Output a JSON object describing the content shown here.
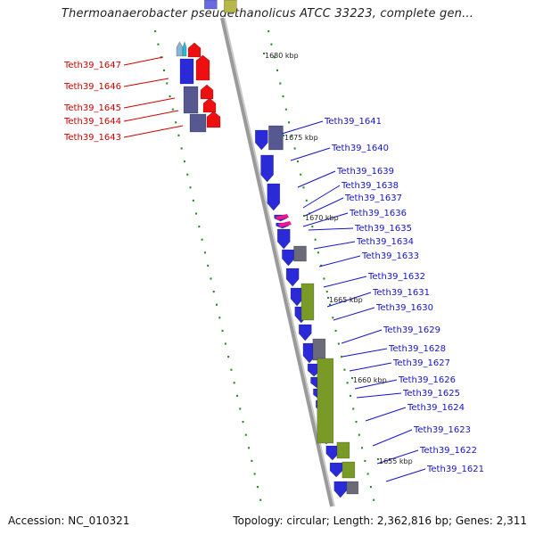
{
  "title": "Thermoanaerobacter pseudethanolicus ATCC 33223, complete gen...",
  "footer": {
    "accession": "Accession: NC_010321",
    "summary": "Topology: circular; Length: 2,362,816 bp; Genes: 2,311"
  },
  "colors": {
    "forward_label": "#1414c8",
    "reverse_label": "#d20000",
    "tick": "#2a8a2a",
    "backbone": "#8a8a8a"
  },
  "scale_labels": [
    "1680 kbp",
    "1675 kbp",
    "1670 kbp",
    "1665 kbp",
    "1660 kbp",
    "1655 kbp"
  ],
  "reverse_genes": [
    "Teth39_1647",
    "Teth39_1646",
    "Teth39_1645",
    "Teth39_1644",
    "Teth39_1643"
  ],
  "forward_genes": [
    "Teth39_1641",
    "Teth39_1640",
    "Teth39_1639",
    "Teth39_1638",
    "Teth39_1637",
    "Teth39_1636",
    "Teth39_1635",
    "Teth39_1634",
    "Teth39_1633",
    "Teth39_1632",
    "Teth39_1631",
    "Teth39_1630",
    "Teth39_1629",
    "Teth39_1628",
    "Teth39_1627",
    "Teth39_1626",
    "Teth39_1625",
    "Teth39_1624",
    "Teth39_1623",
    "Teth39_1622",
    "Teth39_1621"
  ]
}
